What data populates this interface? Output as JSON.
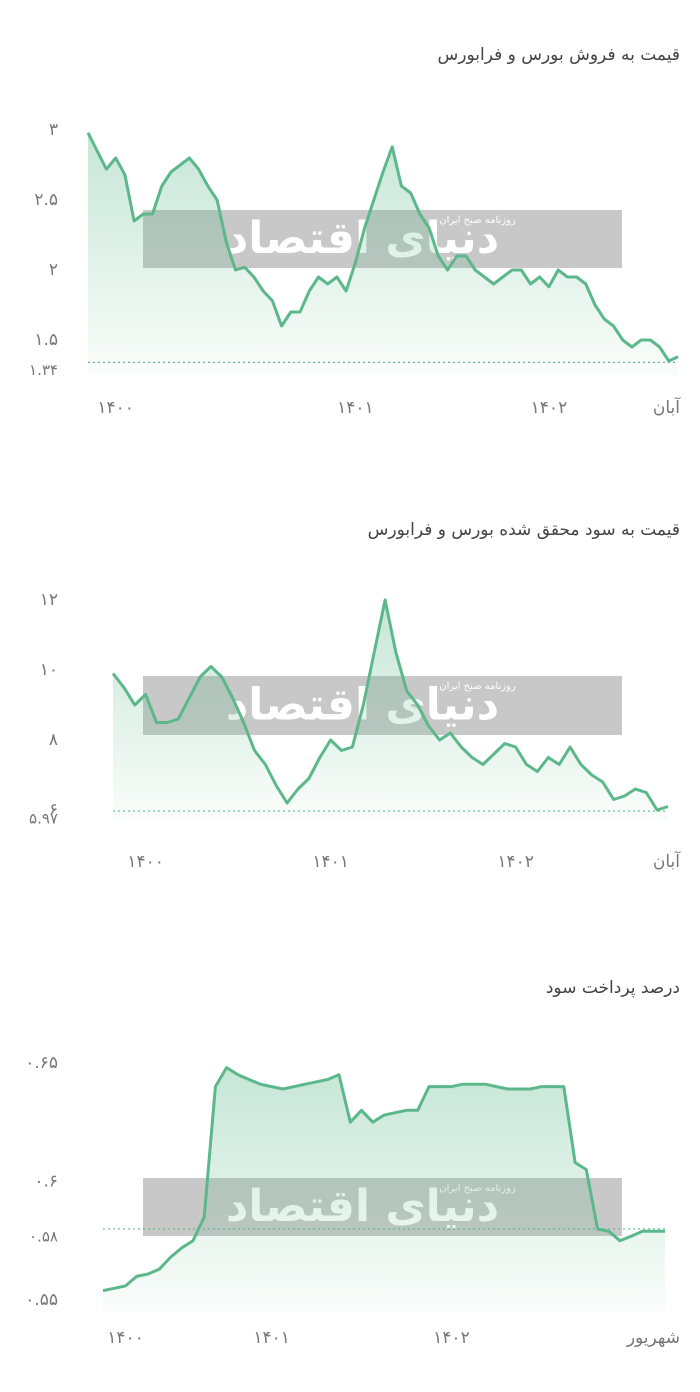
{
  "chart_data": [
    {
      "type": "line",
      "title": "قیمت به فروش بورس و فرابورس",
      "color": "#5cb88a",
      "watermark": {
        "title": "دنیای اقتصاد",
        "subtitle": "روزنامه صبح ایران"
      },
      "categories": [
        null,
        null,
        null,
        "۱۴۰۰",
        null,
        null,
        null,
        null,
        null,
        null,
        null,
        null,
        null,
        null,
        null,
        null,
        null,
        null,
        null,
        null,
        null,
        null,
        null,
        null,
        null,
        null,
        null,
        null,
        null,
        "۱۴۰۱",
        null,
        null,
        null,
        null,
        null,
        null,
        null,
        null,
        null,
        null,
        null,
        null,
        null,
        null,
        null,
        null,
        null,
        null,
        null,
        null,
        "۱۴۰۲",
        null,
        null,
        null,
        null,
        null,
        null,
        null,
        null,
        null,
        null,
        null,
        null,
        "آبان",
        null
      ],
      "values": [
        2.98,
        2.85,
        2.72,
        2.8,
        2.68,
        2.35,
        2.4,
        2.4,
        2.6,
        2.7,
        2.75,
        2.8,
        2.72,
        2.6,
        2.5,
        2.2,
        2.0,
        2.02,
        1.95,
        1.85,
        1.78,
        1.6,
        1.7,
        1.7,
        1.85,
        1.95,
        1.9,
        1.95,
        1.85,
        2.05,
        2.3,
        2.5,
        2.7,
        2.88,
        2.6,
        2.55,
        2.4,
        2.3,
        2.1,
        2.0,
        2.1,
        2.1,
        2.0,
        1.95,
        1.9,
        1.95,
        2.0,
        2.0,
        1.9,
        1.95,
        1.88,
        2.0,
        1.95,
        1.95,
        1.9,
        1.75,
        1.65,
        1.6,
        1.5,
        1.45,
        1.5,
        1.5,
        1.45,
        1.35,
        1.38
      ],
      "ylim": [
        1.25,
        3.05
      ],
      "yticks": [
        {
          "value": 1.5,
          "label": "۱.۵"
        },
        {
          "value": 2,
          "label": "۲"
        },
        {
          "value": 2.5,
          "label": "۲.۵"
        },
        {
          "value": 3,
          "label": "۳"
        }
      ],
      "reference_line": {
        "value": 1.34,
        "label": "۱.۳۴"
      }
    },
    {
      "type": "line",
      "title": "قیمت به سود محقق شده بورس و فرابورس",
      "color": "#5cb88a",
      "watermark": {
        "title": "دنیای اقتصاد",
        "subtitle": "روزنامه صبح ایران"
      },
      "categories": [
        null,
        null,
        null,
        "۱۴۰۰",
        null,
        null,
        null,
        null,
        null,
        null,
        null,
        null,
        null,
        null,
        null,
        null,
        null,
        null,
        null,
        null,
        "۱۴۰۱",
        null,
        null,
        null,
        null,
        null,
        null,
        null,
        null,
        null,
        null,
        null,
        null,
        null,
        null,
        null,
        null,
        "۱۴۰۲",
        null,
        null,
        null,
        null,
        null,
        null,
        null,
        null,
        null,
        null,
        null,
        null,
        "آبان",
        null
      ],
      "values": [
        9.9,
        9.5,
        9.0,
        9.3,
        8.5,
        8.5,
        8.6,
        9.2,
        9.8,
        10.1,
        9.8,
        9.2,
        8.5,
        7.7,
        7.3,
        6.7,
        6.2,
        6.6,
        6.9,
        7.5,
        8.0,
        7.7,
        7.8,
        9.0,
        10.5,
        12.0,
        10.5,
        9.4,
        9.0,
        8.4,
        8.0,
        8.2,
        7.8,
        7.5,
        7.3,
        7.6,
        7.9,
        7.8,
        7.3,
        7.1,
        7.5,
        7.3,
        7.8,
        7.3,
        7.0,
        6.8,
        6.3,
        6.4,
        6.6,
        6.5,
        6.0,
        6.1
      ],
      "ylim": [
        5.7,
        12.3
      ],
      "yticks": [
        {
          "value": 6,
          "label": "۶"
        },
        {
          "value": 8,
          "label": "۸"
        },
        {
          "value": 10,
          "label": "۱۰"
        },
        {
          "value": 12,
          "label": "۱۲"
        }
      ],
      "reference_line": {
        "value": 5.97,
        "label": "۵.۹۷"
      }
    },
    {
      "type": "line",
      "title": "درصد پرداخت سود",
      "color": "#5cb88a",
      "watermark": {
        "title": "دنیای اقتصاد",
        "subtitle": "روزنامه صبح ایران"
      },
      "categories": [
        null,
        null,
        "۱۴۰۰",
        null,
        null,
        null,
        null,
        null,
        null,
        null,
        null,
        null,
        null,
        null,
        null,
        "۱۴۰۱",
        null,
        null,
        null,
        null,
        null,
        null,
        null,
        null,
        null,
        null,
        null,
        null,
        null,
        null,
        null,
        "۱۴۰۲",
        null,
        null,
        null,
        null,
        null,
        null,
        null,
        null,
        null,
        null,
        null,
        null,
        null,
        "شهریور",
        null,
        null,
        null,
        null,
        null
      ],
      "values": [
        0.554,
        0.555,
        0.556,
        0.56,
        0.561,
        0.563,
        0.568,
        0.572,
        0.575,
        0.585,
        0.64,
        0.648,
        0.645,
        0.643,
        0.641,
        0.64,
        0.639,
        0.64,
        0.641,
        0.642,
        0.643,
        0.645,
        0.625,
        0.63,
        0.625,
        0.628,
        0.629,
        0.63,
        0.63,
        0.64,
        0.64,
        0.64,
        0.641,
        0.641,
        0.641,
        0.64,
        0.639,
        0.639,
        0.639,
        0.64,
        0.64,
        0.64,
        0.608,
        0.605,
        0.58,
        0.579,
        0.575,
        0.577,
        0.579,
        0.579,
        0.579
      ],
      "ylim": [
        0.545,
        0.655
      ],
      "yticks": [
        {
          "value": 0.55,
          "label": "۰.۵۵"
        },
        {
          "value": 0.6,
          "label": "۰.۶"
        },
        {
          "value": 0.65,
          "label": "۰.۶۵"
        }
      ],
      "reference_line": {
        "value": 0.58,
        "label": "۰.۵۸"
      }
    }
  ]
}
